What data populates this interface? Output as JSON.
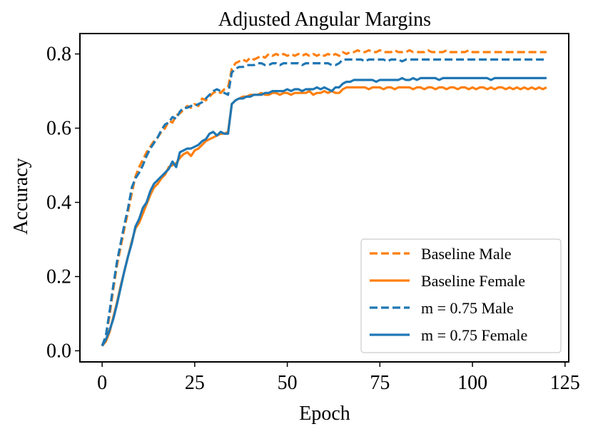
{
  "chart_data": {
    "type": "line",
    "title": "Adjusted Angular Margins",
    "xlabel": "Epoch",
    "ylabel": "Accuracy",
    "xlim": [
      -6,
      126
    ],
    "ylim": [
      -0.03,
      0.855
    ],
    "xticks": [
      0,
      25,
      50,
      75,
      100,
      125
    ],
    "yticks": [
      0.0,
      0.2,
      0.4,
      0.6,
      0.8
    ],
    "xtick_labels": [
      "0",
      "25",
      "50",
      "75",
      "100",
      "125"
    ],
    "ytick_labels": [
      "0.0",
      "0.2",
      "0.4",
      "0.6",
      "0.8"
    ],
    "legend_position": "lower-right",
    "x": [
      0,
      1,
      2,
      3,
      4,
      5,
      6,
      7,
      8,
      9,
      10,
      11,
      12,
      13,
      14,
      15,
      16,
      17,
      18,
      19,
      20,
      21,
      22,
      23,
      24,
      25,
      26,
      27,
      28,
      29,
      30,
      31,
      32,
      33,
      34,
      35,
      36,
      37,
      38,
      39,
      40,
      41,
      42,
      43,
      44,
      45,
      46,
      47,
      48,
      49,
      50,
      51,
      52,
      53,
      54,
      55,
      56,
      57,
      58,
      59,
      60,
      61,
      62,
      63,
      64,
      65,
      66,
      67,
      68,
      69,
      70,
      71,
      72,
      73,
      74,
      75,
      76,
      77,
      78,
      79,
      80,
      81,
      82,
      83,
      84,
      85,
      86,
      87,
      88,
      89,
      90,
      91,
      92,
      93,
      94,
      95,
      96,
      97,
      98,
      99,
      100,
      101,
      102,
      103,
      104,
      105,
      106,
      107,
      108,
      109,
      110,
      111,
      112,
      113,
      114,
      115,
      116,
      117,
      118,
      119,
      120
    ],
    "series": [
      {
        "name": "Baseline Male",
        "color": "#ff7f0e",
        "dash": "dashed",
        "values": [
          0.013,
          0.035,
          0.095,
          0.165,
          0.23,
          0.28,
          0.33,
          0.375,
          0.425,
          0.47,
          0.495,
          0.515,
          0.535,
          0.55,
          0.565,
          0.575,
          0.59,
          0.6,
          0.62,
          0.615,
          0.635,
          0.64,
          0.65,
          0.66,
          0.655,
          0.665,
          0.66,
          0.68,
          0.675,
          0.685,
          0.695,
          0.7,
          0.695,
          0.705,
          0.71,
          0.76,
          0.775,
          0.78,
          0.785,
          0.78,
          0.79,
          0.785,
          0.79,
          0.795,
          0.79,
          0.8,
          0.795,
          0.8,
          0.795,
          0.8,
          0.795,
          0.8,
          0.795,
          0.8,
          0.795,
          0.8,
          0.795,
          0.8,
          0.795,
          0.8,
          0.795,
          0.8,
          0.795,
          0.8,
          0.795,
          0.805,
          0.8,
          0.805,
          0.805,
          0.81,
          0.805,
          0.805,
          0.81,
          0.805,
          0.805,
          0.81,
          0.805,
          0.805,
          0.805,
          0.81,
          0.805,
          0.805,
          0.805,
          0.81,
          0.805,
          0.805,
          0.805,
          0.805,
          0.81,
          0.805,
          0.805,
          0.805,
          0.805,
          0.81,
          0.805,
          0.805,
          0.805,
          0.805,
          0.805,
          0.81,
          0.805,
          0.805,
          0.805,
          0.805,
          0.805,
          0.805,
          0.805,
          0.805,
          0.805,
          0.805,
          0.805,
          0.805,
          0.805,
          0.805,
          0.805,
          0.805,
          0.805,
          0.805,
          0.805,
          0.805,
          0.805
        ]
      },
      {
        "name": "Baseline Female",
        "color": "#ff7f0e",
        "dash": "solid",
        "values": [
          0.013,
          0.025,
          0.05,
          0.09,
          0.13,
          0.175,
          0.215,
          0.255,
          0.295,
          0.33,
          0.345,
          0.37,
          0.395,
          0.42,
          0.44,
          0.45,
          0.465,
          0.475,
          0.495,
          0.5,
          0.505,
          0.52,
          0.53,
          0.535,
          0.525,
          0.54,
          0.545,
          0.555,
          0.565,
          0.57,
          0.575,
          0.58,
          0.585,
          0.585,
          0.59,
          0.665,
          0.675,
          0.68,
          0.685,
          0.685,
          0.69,
          0.69,
          0.69,
          0.695,
          0.69,
          0.69,
          0.695,
          0.695,
          0.69,
          0.695,
          0.695,
          0.69,
          0.695,
          0.695,
          0.695,
          0.695,
          0.7,
          0.69,
          0.695,
          0.695,
          0.7,
          0.695,
          0.7,
          0.695,
          0.695,
          0.705,
          0.71,
          0.71,
          0.71,
          0.71,
          0.71,
          0.71,
          0.705,
          0.71,
          0.71,
          0.71,
          0.705,
          0.71,
          0.71,
          0.705,
          0.71,
          0.71,
          0.71,
          0.71,
          0.705,
          0.71,
          0.71,
          0.705,
          0.71,
          0.71,
          0.705,
          0.71,
          0.71,
          0.705,
          0.71,
          0.71,
          0.705,
          0.71,
          0.71,
          0.705,
          0.71,
          0.705,
          0.71,
          0.71,
          0.705,
          0.71,
          0.705,
          0.71,
          0.71,
          0.705,
          0.71,
          0.705,
          0.71,
          0.705,
          0.71,
          0.705,
          0.71,
          0.705,
          0.71,
          0.705,
          0.71
        ]
      },
      {
        "name": "m = 0.75 Male",
        "color": "#1f77b4",
        "dash": "dashed",
        "values": [
          0.013,
          0.04,
          0.105,
          0.175,
          0.24,
          0.29,
          0.34,
          0.385,
          0.44,
          0.465,
          0.48,
          0.5,
          0.525,
          0.545,
          0.56,
          0.575,
          0.595,
          0.61,
          0.615,
          0.63,
          0.625,
          0.645,
          0.655,
          0.655,
          0.66,
          0.66,
          0.665,
          0.67,
          0.68,
          0.69,
          0.7,
          0.705,
          0.7,
          0.695,
          0.69,
          0.75,
          0.76,
          0.765,
          0.765,
          0.77,
          0.77,
          0.77,
          0.775,
          0.775,
          0.77,
          0.77,
          0.775,
          0.775,
          0.77,
          0.775,
          0.775,
          0.775,
          0.775,
          0.775,
          0.77,
          0.775,
          0.775,
          0.775,
          0.775,
          0.775,
          0.775,
          0.775,
          0.77,
          0.77,
          0.775,
          0.785,
          0.785,
          0.785,
          0.785,
          0.785,
          0.785,
          0.78,
          0.785,
          0.785,
          0.785,
          0.785,
          0.785,
          0.78,
          0.785,
          0.785,
          0.785,
          0.78,
          0.785,
          0.785,
          0.785,
          0.785,
          0.785,
          0.785,
          0.785,
          0.785,
          0.785,
          0.785,
          0.785,
          0.785,
          0.785,
          0.785,
          0.785,
          0.785,
          0.785,
          0.785,
          0.785,
          0.785,
          0.785,
          0.785,
          0.785,
          0.785,
          0.785,
          0.785,
          0.785,
          0.785,
          0.785,
          0.785,
          0.785,
          0.785,
          0.785,
          0.785,
          0.785,
          0.785,
          0.785,
          0.785,
          0.785
        ]
      },
      {
        "name": "m = 0.75 Female",
        "color": "#1f77b4",
        "dash": "solid",
        "values": [
          0.013,
          0.03,
          0.055,
          0.085,
          0.125,
          0.17,
          0.215,
          0.255,
          0.29,
          0.335,
          0.355,
          0.385,
          0.4,
          0.43,
          0.45,
          0.46,
          0.47,
          0.48,
          0.49,
          0.51,
          0.495,
          0.535,
          0.54,
          0.545,
          0.545,
          0.55,
          0.555,
          0.565,
          0.57,
          0.585,
          0.59,
          0.58,
          0.59,
          0.585,
          0.585,
          0.665,
          0.675,
          0.68,
          0.68,
          0.685,
          0.685,
          0.69,
          0.69,
          0.69,
          0.695,
          0.695,
          0.7,
          0.7,
          0.7,
          0.7,
          0.705,
          0.7,
          0.705,
          0.705,
          0.7,
          0.705,
          0.705,
          0.705,
          0.71,
          0.705,
          0.71,
          0.705,
          0.7,
          0.71,
          0.71,
          0.72,
          0.725,
          0.725,
          0.73,
          0.73,
          0.73,
          0.73,
          0.73,
          0.73,
          0.725,
          0.73,
          0.73,
          0.73,
          0.73,
          0.73,
          0.73,
          0.735,
          0.73,
          0.73,
          0.735,
          0.73,
          0.735,
          0.735,
          0.735,
          0.735,
          0.735,
          0.73,
          0.735,
          0.735,
          0.735,
          0.735,
          0.735,
          0.735,
          0.735,
          0.735,
          0.735,
          0.735,
          0.735,
          0.735,
          0.735,
          0.73,
          0.735,
          0.735,
          0.735,
          0.735,
          0.735,
          0.735,
          0.735,
          0.735,
          0.735,
          0.735,
          0.735,
          0.735,
          0.735,
          0.735,
          0.735
        ]
      }
    ]
  }
}
